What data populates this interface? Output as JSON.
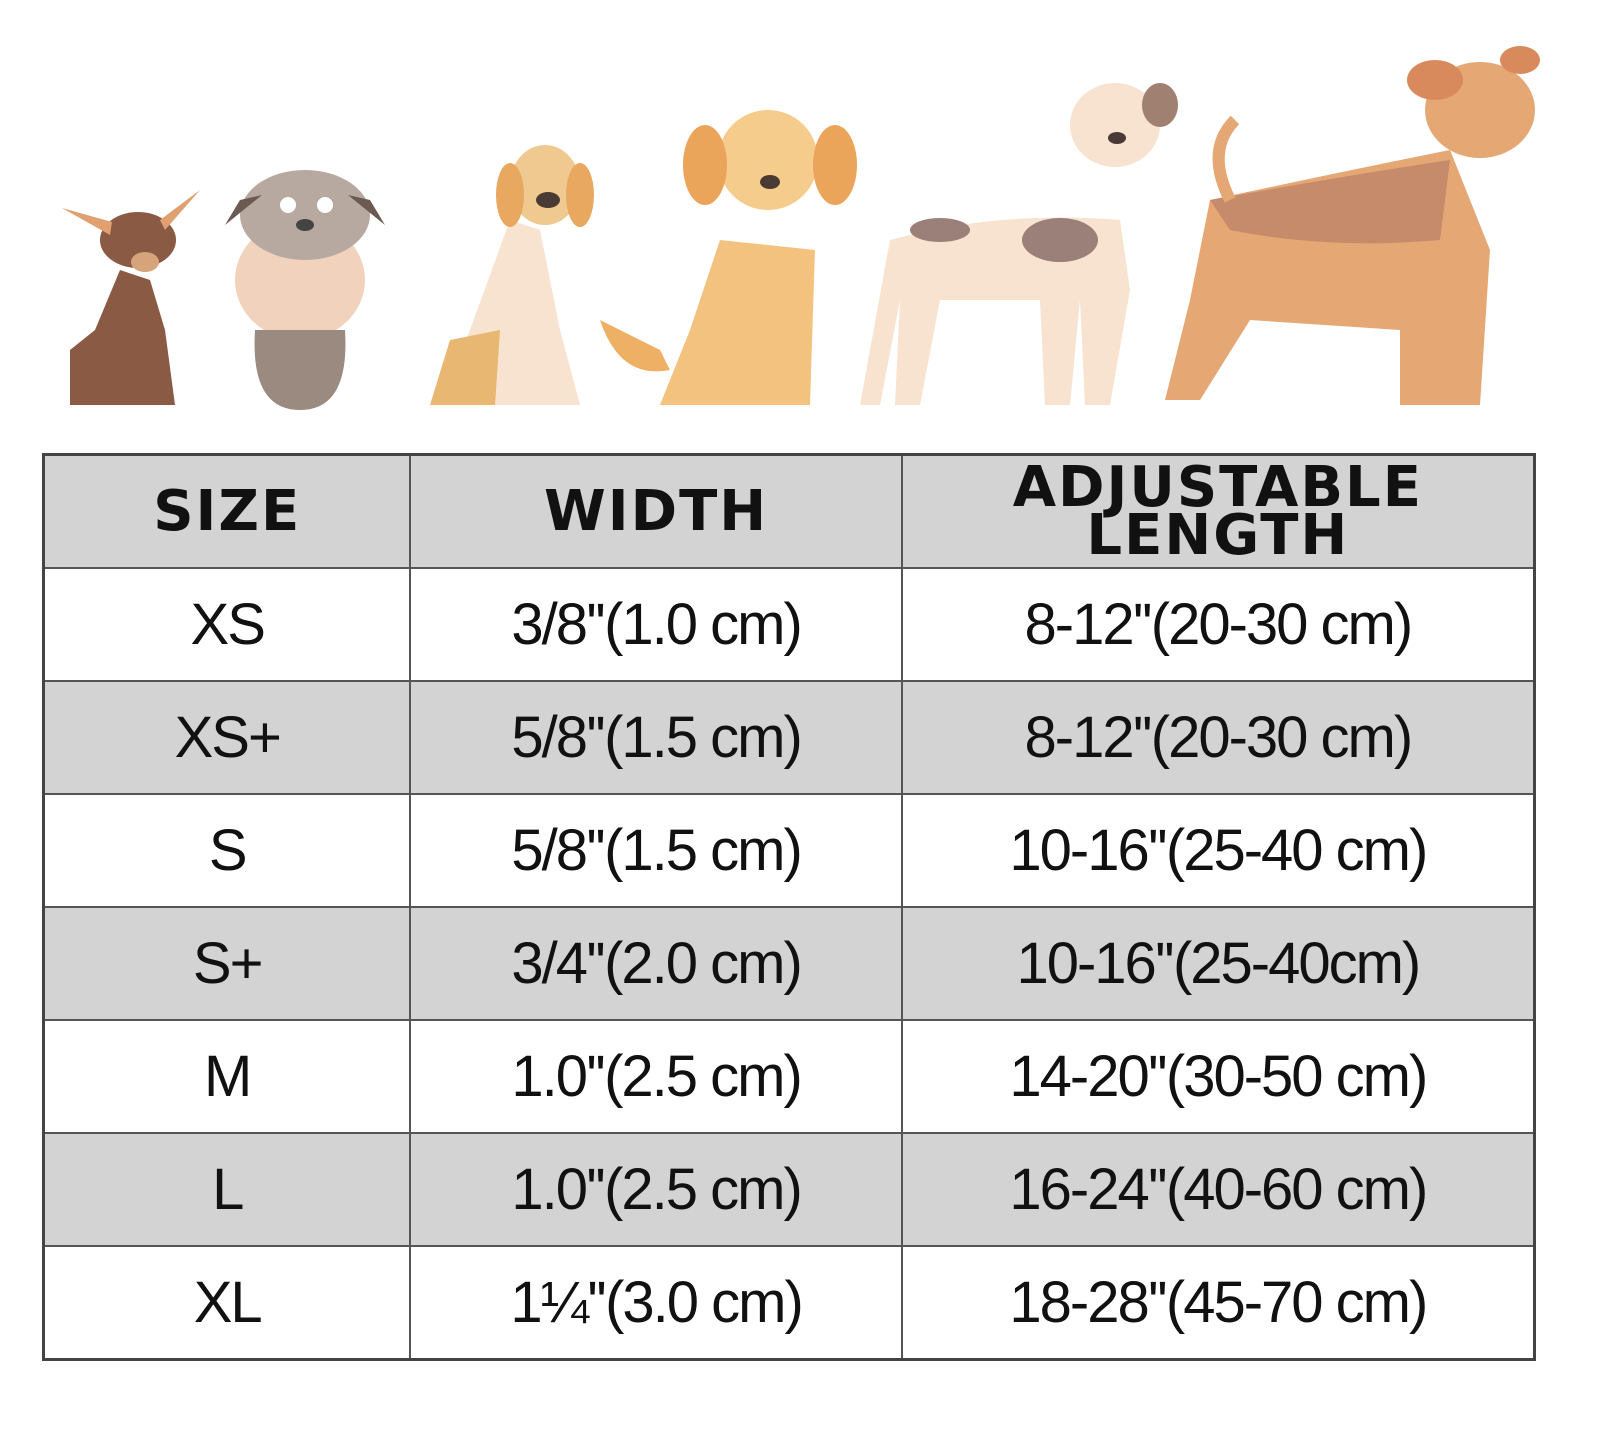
{
  "illustration": {
    "icons": [
      "chihuahua-icon",
      "schnauzer-icon",
      "beagle-icon",
      "golden-retriever-icon",
      "great-dane-icon",
      "airedale-terrier-icon"
    ]
  },
  "table": {
    "headers": {
      "size": "SIZE",
      "width": "WIDTH",
      "length": "ADJUSTABLE LENGTH"
    },
    "rows": [
      {
        "size": "XS",
        "width": "3/8''(1.0 cm)",
        "length": "8-12''(20-30 cm)"
      },
      {
        "size": "XS+",
        "width": "5/8''(1.5 cm)",
        "length": "8-12''(20-30 cm)"
      },
      {
        "size": "S",
        "width": "5/8''(1.5 cm)",
        "length": "10-16''(25-40 cm)"
      },
      {
        "size": "S+",
        "width": "3/4''(2.0 cm)",
        "length": "10-16''(25-40cm)"
      },
      {
        "size": "M",
        "width": "1.0''(2.5 cm)",
        "length": "14-20''(30-50 cm)"
      },
      {
        "size": "L",
        "width": "1.0''(2.5 cm)",
        "length": "16-24''(40-60 cm)"
      },
      {
        "size": "XL",
        "width": "1¼''(3.0 cm)",
        "length": "18-28''(45-70 cm)"
      }
    ],
    "colors": {
      "header_bg": "#d3d3d3",
      "shade_bg": "#d3d3d3",
      "border": "#555555"
    }
  }
}
